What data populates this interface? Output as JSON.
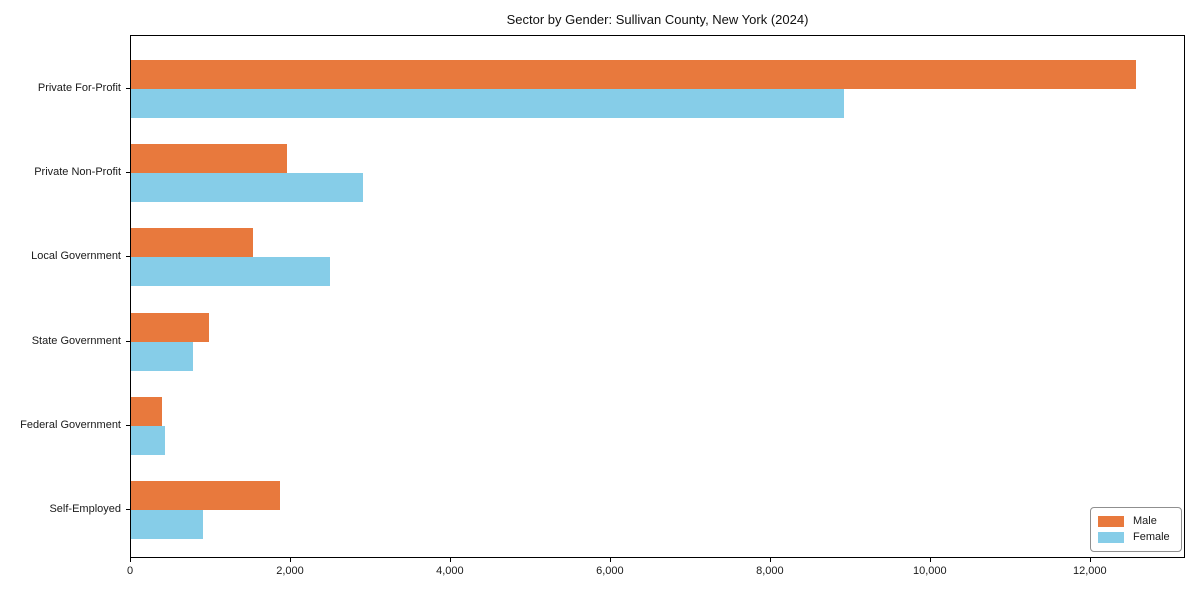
{
  "chart_data": {
    "type": "bar",
    "orientation": "horizontal",
    "title": "Sector by Gender: Sullivan County, New York (2024)",
    "xlabel": "",
    "ylabel": "",
    "categories": [
      "Private For-Profit",
      "Private Non-Profit",
      "Local Government",
      "State Government",
      "Federal Government",
      "Self-Employed"
    ],
    "series": [
      {
        "name": "Male",
        "color": "#e8793d",
        "values": [
          12560,
          1945,
          1530,
          980,
          385,
          1860
        ]
      },
      {
        "name": "Female",
        "color": "#86cde8",
        "values": [
          8910,
          2905,
          2490,
          775,
          420,
          905
        ]
      }
    ],
    "xlim": [
      0,
      13190
    ],
    "x_ticks": [
      0,
      2000,
      4000,
      6000,
      8000,
      10000,
      12000
    ],
    "x_tick_labels": [
      "0",
      "2,000",
      "4,000",
      "6,000",
      "8,000",
      "10,000",
      "12,000"
    ],
    "grid": false,
    "legend_position": "lower right"
  }
}
